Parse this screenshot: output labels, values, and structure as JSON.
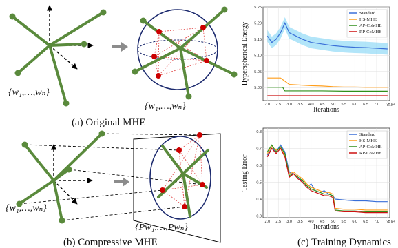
{
  "captions": {
    "a": "(a) Original MHE",
    "b": "(b) Compressive MHE",
    "c": "(c) Training Dynamics"
  },
  "math": {
    "set_left_a": "{w₁,…,wₙ}",
    "set_right_a": "{w₁,…,wₙ}",
    "set_left_b": "{w₁,…,wₙ}",
    "set_proj_b": "{Pw₁,…,Pwₙ}"
  },
  "colors": {
    "stick": "#5a8a3c",
    "point_red": "#cc0000",
    "sphere": "#1c2a6e",
    "arrow_gray": "#8c8c8c"
  },
  "chart_data": [
    {
      "type": "line",
      "title": "",
      "xlabel": "Iterations",
      "ylabel": "Hyperspherical Energy",
      "x_multiplier_label": "x10⁴",
      "xlim": [
        1.8,
        7.6
      ],
      "ylim": [
        4.96,
        5.25
      ],
      "xticks": [
        "2.0",
        "2.5",
        "3.0",
        "3.5",
        "4.0",
        "4.5",
        "5.0",
        "5.5",
        "6.0",
        "6.5",
        "7.0",
        "7.5"
      ],
      "yticks": [
        "5.00",
        "5.05",
        "5.10",
        "5.15",
        "5.20",
        "5.25"
      ],
      "legend_position": "top-right",
      "grid": true,
      "series": [
        {
          "name": "Standard",
          "color": "#3a6fd8",
          "band": "#7fd3f5",
          "x": [
            2.0,
            2.2,
            2.4,
            2.6,
            2.8,
            3.0,
            3.3,
            3.6,
            4.0,
            4.5,
            5.0,
            5.5,
            6.0,
            6.5,
            7.0,
            7.5
          ],
          "y": [
            5.16,
            5.14,
            5.15,
            5.17,
            5.2,
            5.17,
            5.16,
            5.15,
            5.14,
            5.135,
            5.13,
            5.127,
            5.125,
            5.124,
            5.122,
            5.12
          ]
        },
        {
          "name": "HS-MHE",
          "color": "#ff9e1b",
          "x": [
            2.0,
            2.3,
            2.6,
            2.8,
            3.0,
            3.5,
            4.0,
            4.5,
            5.0,
            5.5,
            6.0,
            6.5,
            7.0,
            7.5
          ],
          "y": [
            5.03,
            5.03,
            5.03,
            5.02,
            5.01,
            5.008,
            5.006,
            5.005,
            5.003,
            5.002,
            5.002,
            5.001,
            5.001,
            5.001
          ]
        },
        {
          "name": "AP-CoMHE",
          "color": "#2f8f1a",
          "x": [
            2.0,
            2.7,
            2.8,
            3.5,
            4.5,
            5.5,
            6.5,
            7.5
          ],
          "y": [
            5.001,
            5.001,
            4.99,
            4.99,
            4.99,
            4.989,
            4.989,
            4.989
          ]
        },
        {
          "name": "RP-CoMHE",
          "color": "#cc1111",
          "x": [
            2.0,
            3.0,
            4.0,
            5.0,
            6.0,
            7.0,
            7.5
          ],
          "y": [
            4.975,
            4.975,
            4.975,
            4.975,
            4.975,
            4.975,
            4.975
          ]
        }
      ]
    },
    {
      "type": "line",
      "title": "",
      "xlabel": "Iterations",
      "ylabel": "Testing Error",
      "x_multiplier_label": "x10⁴",
      "xlim": [
        1.8,
        7.6
      ],
      "ylim": [
        0.29,
        0.82
      ],
      "xticks": [
        "2.0",
        "2.5",
        "3.0",
        "3.5",
        "4.0",
        "4.5",
        "5.0",
        "5.5",
        "6.0",
        "6.5",
        "7.0",
        "7.5"
      ],
      "yticks": [
        "0.3",
        "0.4",
        "0.5",
        "0.6",
        "0.7",
        "0.8"
      ],
      "legend_position": "top-right",
      "grid": true,
      "series": [
        {
          "name": "Standard",
          "color": "#3a6fd8",
          "x": [
            2.0,
            2.2,
            2.4,
            2.6,
            2.8,
            3.0,
            3.2,
            3.4,
            3.6,
            3.8,
            4.0,
            4.2,
            4.4,
            4.6,
            4.8,
            5.0,
            5.1,
            5.5,
            6.0,
            6.5,
            7.0,
            7.5
          ],
          "y": [
            0.66,
            0.7,
            0.68,
            0.72,
            0.68,
            0.56,
            0.55,
            0.53,
            0.5,
            0.47,
            0.49,
            0.45,
            0.44,
            0.45,
            0.43,
            0.42,
            0.4,
            0.395,
            0.39,
            0.39,
            0.385,
            0.385
          ]
        },
        {
          "name": "HS-MHE",
          "color": "#ff9e1b",
          "x": [
            2.0,
            2.2,
            2.4,
            2.6,
            2.8,
            3.0,
            3.2,
            3.4,
            3.6,
            3.8,
            4.0,
            4.2,
            4.4,
            4.6,
            4.8,
            5.0,
            5.1,
            5.5,
            6.0,
            6.5,
            7.0,
            7.5
          ],
          "y": [
            0.67,
            0.71,
            0.69,
            0.7,
            0.66,
            0.55,
            0.56,
            0.54,
            0.52,
            0.49,
            0.47,
            0.46,
            0.45,
            0.44,
            0.44,
            0.43,
            0.345,
            0.34,
            0.34,
            0.335,
            0.335,
            0.335
          ]
        },
        {
          "name": "AP-CoMHE",
          "color": "#2f8f1a",
          "x": [
            2.0,
            2.2,
            2.4,
            2.6,
            2.8,
            3.0,
            3.2,
            3.4,
            3.6,
            3.8,
            4.0,
            4.2,
            4.4,
            4.6,
            4.8,
            5.0,
            5.1,
            5.5,
            6.0,
            6.5,
            7.0,
            7.5
          ],
          "y": [
            0.68,
            0.72,
            0.68,
            0.71,
            0.67,
            0.54,
            0.55,
            0.53,
            0.51,
            0.48,
            0.46,
            0.45,
            0.44,
            0.43,
            0.43,
            0.42,
            0.335,
            0.33,
            0.33,
            0.325,
            0.325,
            0.325
          ]
        },
        {
          "name": "RP-CoMHE",
          "color": "#cc1111",
          "x": [
            2.0,
            2.2,
            2.4,
            2.6,
            2.8,
            3.0,
            3.2,
            3.4,
            3.6,
            3.8,
            4.0,
            4.2,
            4.4,
            4.6,
            4.8,
            5.0,
            5.1,
            5.5,
            6.0,
            6.5,
            7.0,
            7.5
          ],
          "y": [
            0.65,
            0.7,
            0.67,
            0.7,
            0.65,
            0.53,
            0.55,
            0.52,
            0.5,
            0.47,
            0.45,
            0.44,
            0.43,
            0.42,
            0.42,
            0.41,
            0.33,
            0.325,
            0.325,
            0.32,
            0.32,
            0.32
          ]
        }
      ]
    }
  ]
}
